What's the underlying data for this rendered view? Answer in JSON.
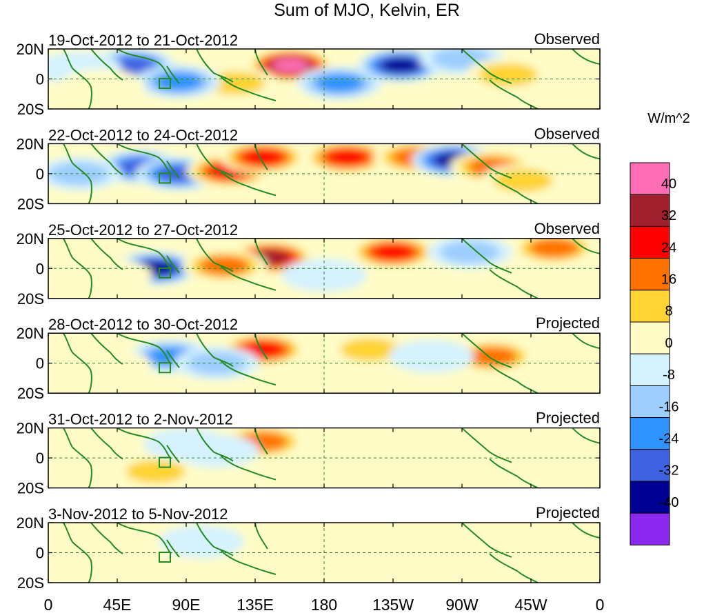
{
  "chart_data": {
    "type": "heatmap",
    "title": "Sum of MJO, Kelvin, ER",
    "colorbar": {
      "units": "W/m^2",
      "tick_labels": [
        "40",
        "32",
        "24",
        "16",
        "8",
        "0",
        "-8",
        "-16",
        "-24",
        "-32",
        "-40"
      ],
      "colors": [
        "#ff6eb4",
        "#a0212d",
        "#fe0000",
        "#ff7200",
        "#fed333",
        "#fffcc7",
        "#d5f2ff",
        "#9dcefe",
        "#2e93ff",
        "#3f63e0",
        "#000095",
        "#8b28f0"
      ]
    },
    "x_ticks": [
      "0",
      "45E",
      "90E",
      "135E",
      "180",
      "135W",
      "90W",
      "45W",
      "0"
    ],
    "y_ticks": [
      "20N",
      "0",
      "20S"
    ],
    "panels": [
      {
        "period": "19-Oct-2012 to 21-Oct-2012",
        "kind": "Observed",
        "blobs": [
          {
            "lon": 158,
            "lat": 10,
            "value": 44
          },
          {
            "lon": 122,
            "lat": -3,
            "value": 18
          },
          {
            "lon": 55,
            "lat": 10,
            "value": -28
          },
          {
            "lon": 85,
            "lat": -2,
            "value": -22
          },
          {
            "lon": 190,
            "lat": -3,
            "value": -26
          },
          {
            "lon": 230,
            "lat": 10,
            "value": -36
          },
          {
            "lon": 270,
            "lat": 15,
            "value": -14
          },
          {
            "lon": 300,
            "lat": 3,
            "value": 12
          },
          {
            "lon": 20,
            "lat": 8,
            "value": -10
          },
          {
            "lon": 35,
            "lat": -5,
            "value": 10
          }
        ]
      },
      {
        "period": "22-Oct-2012 to 24-Oct-2012",
        "kind": "Observed",
        "blobs": [
          {
            "lon": 60,
            "lat": 5,
            "value": -30
          },
          {
            "lon": 85,
            "lat": 0,
            "value": -34
          },
          {
            "lon": 118,
            "lat": 2,
            "value": 30
          },
          {
            "lon": 140,
            "lat": 12,
            "value": 28
          },
          {
            "lon": 195,
            "lat": 12,
            "value": 30
          },
          {
            "lon": 240,
            "lat": 12,
            "value": 20
          },
          {
            "lon": 265,
            "lat": 10,
            "value": -36
          },
          {
            "lon": 290,
            "lat": 5,
            "value": 26
          },
          {
            "lon": 20,
            "lat": 0,
            "value": -16
          },
          {
            "lon": 310,
            "lat": -5,
            "value": 14
          }
        ]
      },
      {
        "period": "25-Oct-2012 to 27-Oct-2012",
        "kind": "Observed",
        "blobs": [
          {
            "lon": 70,
            "lat": 0,
            "value": -40
          },
          {
            "lon": 145,
            "lat": 8,
            "value": 36
          },
          {
            "lon": 115,
            "lat": 2,
            "value": 20
          },
          {
            "lon": 225,
            "lat": 12,
            "value": 30
          },
          {
            "lon": 275,
            "lat": 12,
            "value": -14
          },
          {
            "lon": 330,
            "lat": 15,
            "value": 20
          },
          {
            "lon": 40,
            "lat": -5,
            "value": 10
          },
          {
            "lon": 180,
            "lat": -5,
            "value": -10
          }
        ]
      },
      {
        "period": "28-Oct-2012 to 30-Oct-2012",
        "kind": "Projected",
        "blobs": [
          {
            "lon": 140,
            "lat": 10,
            "value": 32
          },
          {
            "lon": 80,
            "lat": 5,
            "value": -20
          },
          {
            "lon": 110,
            "lat": 0,
            "value": -18
          },
          {
            "lon": 210,
            "lat": 10,
            "value": 12
          },
          {
            "lon": 290,
            "lat": 5,
            "value": 20
          },
          {
            "lon": 40,
            "lat": -2,
            "value": 8
          },
          {
            "lon": 250,
            "lat": 5,
            "value": -8
          }
        ]
      },
      {
        "period": "31-Oct-2012 to 2-Nov-2012",
        "kind": "Projected",
        "blobs": [
          {
            "lon": 140,
            "lat": 12,
            "value": 20
          },
          {
            "lon": 70,
            "lat": -10,
            "value": 12
          },
          {
            "lon": 90,
            "lat": 10,
            "value": -10
          },
          {
            "lon": 200,
            "lat": -8,
            "value": 6
          },
          {
            "lon": 110,
            "lat": 5,
            "value": -8
          }
        ]
      },
      {
        "period": "3-Nov-2012 to 5-Nov-2012",
        "kind": "Projected",
        "blobs": [
          {
            "lon": 70,
            "lat": 0,
            "value": 10
          },
          {
            "lon": 100,
            "lat": 8,
            "value": -6
          },
          {
            "lon": 210,
            "lat": 0,
            "value": 4
          },
          {
            "lon": 150,
            "lat": -8,
            "value": 5
          }
        ]
      }
    ]
  }
}
